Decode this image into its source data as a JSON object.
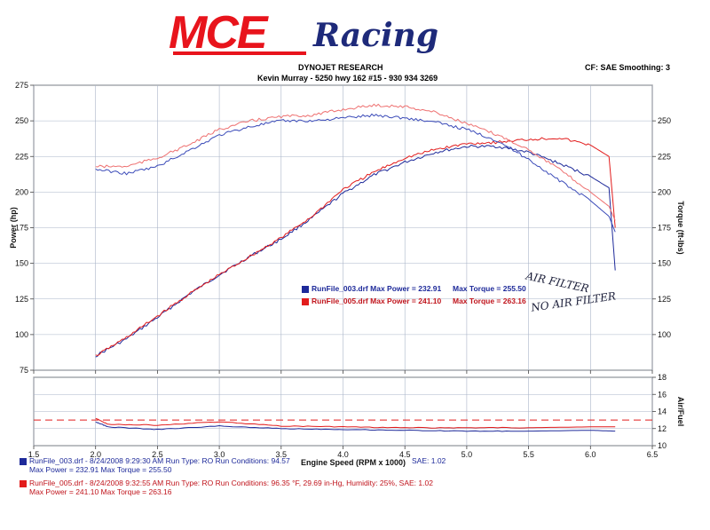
{
  "brand": {
    "logo_main": "MCE",
    "logo_script": "Racing",
    "colors": {
      "red": "#e8141c",
      "navy": "#1e2a7a"
    }
  },
  "header": {
    "company": "DYNOJET RESEARCH",
    "contact": "Kevin Murray  - 5250 hwy 162 #15 - 930 934 3269",
    "settings": "CF: SAE  Smoothing: 3"
  },
  "annotations": {
    "run1_note": "AIR FILTER",
    "run2_note": "NO AIR FILTER"
  },
  "chart_data": [
    {
      "type": "line",
      "title": "",
      "xlabel": "",
      "ylabel": "Power (hp)",
      "y2label": "Torque (ft-lbs)",
      "xlim": [
        1.5,
        6.5
      ],
      "ylim": [
        75,
        275
      ],
      "y2lim": [
        75,
        275
      ],
      "x_ticks": [
        1.5,
        2.0,
        2.5,
        3.0,
        3.5,
        4.0,
        4.5,
        5.0,
        5.5,
        6.0,
        6.5
      ],
      "y_ticks": [
        75,
        100,
        125,
        150,
        175,
        200,
        225,
        250,
        275
      ],
      "y2_ticks": [
        100,
        125,
        150,
        175,
        200,
        225,
        250
      ],
      "grid": true,
      "legend_position": "center-right",
      "legend": [
        {
          "swatch": "#1e2a9a",
          "file": "RunFile_003.drf",
          "power": "Max Power = 232.91",
          "torque": "Max Torque = 255.50"
        },
        {
          "swatch": "#e21c1c",
          "file": "RunFile_005.drf",
          "power": "Max Power = 241.10",
          "torque": "Max Torque = 263.16"
        }
      ],
      "series": [
        {
          "name": "RunFile_003.drf",
          "measure": "power",
          "color": "#1e2a9a",
          "x": [
            2.0,
            2.25,
            2.5,
            2.75,
            3.0,
            3.25,
            3.5,
            3.75,
            4.0,
            4.25,
            4.5,
            4.75,
            5.0,
            5.25,
            5.5,
            5.75,
            6.0,
            6.15,
            6.2
          ],
          "y": [
            85,
            97,
            112,
            128,
            142,
            155,
            167,
            182,
            199,
            212,
            221,
            228,
            232,
            232,
            228,
            220,
            211,
            203,
            145
          ]
        },
        {
          "name": "RunFile_005.drf",
          "measure": "power",
          "color": "#e21c1c",
          "x": [
            2.0,
            2.25,
            2.5,
            2.75,
            3.0,
            3.25,
            3.5,
            3.75,
            4.0,
            4.25,
            4.5,
            4.75,
            5.0,
            5.25,
            5.5,
            5.75,
            6.0,
            6.15,
            6.2
          ],
          "y": [
            85,
            98,
            113,
            128,
            142,
            155,
            168,
            183,
            202,
            214,
            224,
            230,
            234,
            235,
            237,
            238,
            233,
            225,
            175
          ]
        },
        {
          "name": "RunFile_003.drf",
          "measure": "torque",
          "color": "#3a4ab8",
          "x": [
            2.0,
            2.25,
            2.5,
            2.75,
            3.0,
            3.25,
            3.5,
            3.75,
            4.0,
            4.25,
            4.5,
            4.75,
            5.0,
            5.25,
            5.5,
            5.75,
            6.0,
            6.15,
            6.2
          ],
          "y": [
            216,
            213,
            218,
            229,
            240,
            246,
            250,
            250,
            252,
            254,
            252,
            249,
            244,
            236,
            223,
            208,
            194,
            183,
            172
          ]
        },
        {
          "name": "RunFile_005.drf",
          "measure": "torque",
          "color": "#ee7070",
          "x": [
            2.0,
            2.25,
            2.5,
            2.75,
            3.0,
            3.25,
            3.5,
            3.75,
            4.0,
            4.25,
            4.5,
            4.75,
            5.0,
            5.25,
            5.5,
            5.75,
            6.0,
            6.15,
            6.2
          ],
          "y": [
            218,
            218,
            224,
            233,
            244,
            250,
            253,
            254,
            258,
            261,
            260,
            256,
            248,
            240,
            230,
            216,
            200,
            190,
            180
          ]
        }
      ]
    },
    {
      "type": "line",
      "title": "",
      "xlabel": "Engine Speed (RPM x 1000)",
      "ylabel": "Air/Fuel",
      "xlim": [
        1.5,
        6.5
      ],
      "ylim": [
        10,
        18
      ],
      "x_ticks": [
        1.5,
        2.0,
        2.5,
        3.0,
        3.5,
        4.0,
        4.5,
        5.0,
        5.5,
        6.0,
        6.5
      ],
      "x_tick_labels": [
        "1.5",
        "2.0",
        "2.5",
        "3.0",
        "3.5",
        "4.0",
        "4.5",
        "5.0",
        "5.5",
        "6.0",
        "6.5"
      ],
      "y_ticks": [
        10,
        12,
        14,
        16,
        18
      ],
      "reference_line": 13.0,
      "grid": true,
      "series": [
        {
          "name": "RunFile_003.drf",
          "color": "#1e2a9a",
          "x": [
            2.0,
            2.1,
            2.5,
            3.0,
            3.5,
            4.0,
            4.5,
            5.0,
            5.5,
            6.0,
            6.2
          ],
          "y": [
            12.8,
            12.2,
            11.9,
            12.3,
            12.0,
            11.9,
            11.8,
            11.7,
            11.7,
            11.8,
            11.7
          ]
        },
        {
          "name": "RunFile_005.drf",
          "color": "#e21c1c",
          "x": [
            2.0,
            2.1,
            2.5,
            3.0,
            3.5,
            4.0,
            4.5,
            5.0,
            5.5,
            6.0,
            6.2
          ],
          "y": [
            13.2,
            12.5,
            12.4,
            12.8,
            12.3,
            12.2,
            12.1,
            12.1,
            12.1,
            12.2,
            12.2
          ]
        }
      ]
    }
  ],
  "footer": {
    "run1": {
      "swatch": "#1e2a9a",
      "line1": "RunFile_003.drf - 8/24/2008 9:29:30 AM  Run Type: RO  Run Conditions: 94.57",
      "line1_tail": "SAE: 1.02",
      "line2": "Max Power = 232.91  Max Torque = 255.50"
    },
    "run2": {
      "swatch": "#e21c1c",
      "line1": "RunFile_005.drf - 8/24/2008 9:32:55 AM  Run Type: RO  Run Conditions: 96.35 °F, 29.69 in-Hg,  Humidity:  25%, SAE: 1.02",
      "line2": "Max Power = 241.10  Max Torque = 263.16"
    }
  }
}
